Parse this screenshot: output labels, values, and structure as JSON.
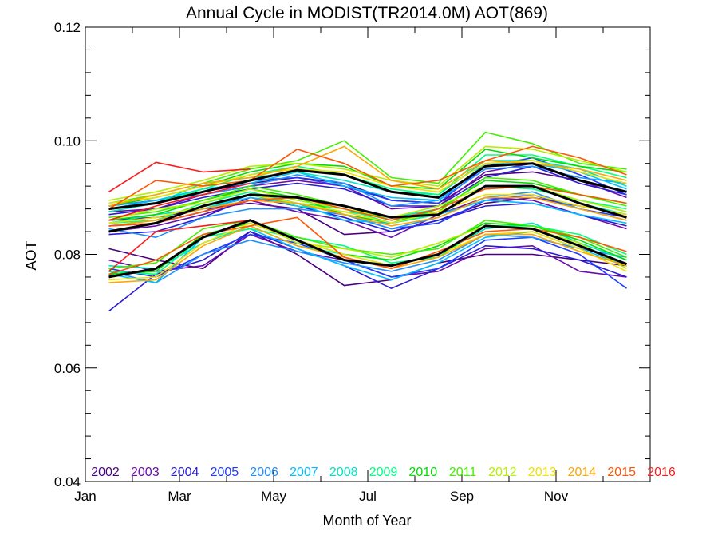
{
  "chart_data": {
    "type": "line",
    "title": "Annual Cycle in MODIST(TR2014.0M) AOT(869)",
    "xlabel": "Month of Year",
    "ylabel": "AOT",
    "x": [
      1,
      2,
      3,
      4,
      5,
      6,
      7,
      8,
      9,
      10,
      11,
      12
    ],
    "xlim": [
      0.5,
      12.5
    ],
    "ylim": [
      0.04,
      0.12
    ],
    "xticks": [
      {
        "value": 0.5,
        "label": "Jan"
      },
      {
        "value": 2.5,
        "label": "Mar"
      },
      {
        "value": 4.5,
        "label": "May"
      },
      {
        "value": 6.5,
        "label": "Jul"
      },
      {
        "value": 8.5,
        "label": "Sep"
      },
      {
        "value": 10.5,
        "label": "Nov"
      }
    ],
    "yticks": [
      {
        "value": 0.04,
        "label": "0.04"
      },
      {
        "value": 0.06,
        "label": "0.06"
      },
      {
        "value": 0.08,
        "label": "0.08"
      },
      {
        "value": 0.1,
        "label": "0.10"
      },
      {
        "value": 0.12,
        "label": "0.12"
      }
    ],
    "grid": false,
    "legend_position": "bottom",
    "series": [
      {
        "name": "2002",
        "color": "#4b0082",
        "groups": [
          [
            0.081,
            0.079,
            0.0775,
            0.084,
            0.08,
            0.0745,
            0.0755,
            0.0785,
            0.08,
            0.08,
            0.079,
            0.078
          ],
          [
            0.086,
            0.0865,
            0.088,
            0.089,
            0.088,
            0.0835,
            0.084,
            0.086,
            0.089,
            0.09,
            0.0885,
            0.087
          ],
          [
            0.0885,
            0.0895,
            0.091,
            0.0925,
            0.0935,
            0.0925,
            0.0895,
            0.089,
            0.094,
            0.0945,
            0.093,
            0.091
          ]
        ]
      },
      {
        "name": "2003",
        "color": "#6a0dad",
        "groups": [
          [
            0.079,
            0.077,
            0.078,
            0.0835,
            0.0805,
            0.079,
            0.076,
            0.077,
            0.081,
            0.0815,
            0.077,
            0.076
          ],
          [
            0.084,
            0.085,
            0.087,
            0.0895,
            0.0875,
            0.086,
            0.083,
            0.087,
            0.09,
            0.0895,
            0.087,
            0.0845
          ],
          [
            0.0875,
            0.088,
            0.0905,
            0.092,
            0.093,
            0.092,
            0.088,
            0.0885,
            0.0945,
            0.096,
            0.093,
            0.09
          ]
        ]
      },
      {
        "name": "2004",
        "color": "#2a1bd6",
        "groups": [
          [
            0.07,
            0.0765,
            0.079,
            0.084,
            0.081,
            0.078,
            0.074,
            0.0775,
            0.0815,
            0.081,
            0.079,
            0.076
          ],
          [
            0.0835,
            0.084,
            0.0865,
            0.09,
            0.0885,
            0.0865,
            0.084,
            0.086,
            0.0885,
            0.089,
            0.087,
            0.085
          ],
          [
            0.087,
            0.088,
            0.09,
            0.0915,
            0.0925,
            0.0915,
            0.0885,
            0.0885,
            0.0935,
            0.0955,
            0.0925,
            0.0905
          ]
        ]
      },
      {
        "name": "2005",
        "color": "#1e3cff",
        "groups": [
          [
            0.0775,
            0.076,
            0.08,
            0.0835,
            0.082,
            0.079,
            0.076,
            0.0775,
            0.0825,
            0.083,
            0.08,
            0.074
          ],
          [
            0.085,
            0.0855,
            0.0875,
            0.0905,
            0.089,
            0.087,
            0.0845,
            0.0855,
            0.0895,
            0.0905,
            0.088,
            0.0865
          ],
          [
            0.088,
            0.089,
            0.091,
            0.093,
            0.0935,
            0.092,
            0.0895,
            0.089,
            0.0955,
            0.097,
            0.094,
            0.0905
          ]
        ]
      },
      {
        "name": "2006",
        "color": "#1e90ff",
        "groups": [
          [
            0.077,
            0.075,
            0.08,
            0.0825,
            0.0805,
            0.0785,
            0.077,
            0.079,
            0.0835,
            0.083,
            0.081,
            0.0795
          ],
          [
            0.0845,
            0.083,
            0.0865,
            0.088,
            0.088,
            0.087,
            0.0845,
            0.0865,
            0.09,
            0.091,
            0.088,
            0.086
          ],
          [
            0.0885,
            0.0895,
            0.0905,
            0.092,
            0.094,
            0.0925,
            0.0885,
            0.0895,
            0.095,
            0.0955,
            0.0935,
            0.0925
          ]
        ]
      },
      {
        "name": "2007",
        "color": "#00bfff",
        "groups": [
          [
            0.0765,
            0.075,
            0.083,
            0.0845,
            0.081,
            0.078,
            0.0755,
            0.0785,
            0.083,
            0.084,
            0.081,
            0.078
          ],
          [
            0.085,
            0.086,
            0.088,
            0.09,
            0.089,
            0.086,
            0.0855,
            0.087,
            0.0895,
            0.089,
            0.087,
            0.0855
          ],
          [
            0.088,
            0.0895,
            0.0915,
            0.0925,
            0.0945,
            0.092,
            0.09,
            0.0895,
            0.096,
            0.096,
            0.0945,
            0.0915
          ]
        ]
      },
      {
        "name": "2008",
        "color": "#00e5c0",
        "groups": [
          [
            0.078,
            0.0775,
            0.082,
            0.085,
            0.0815,
            0.08,
            0.078,
            0.08,
            0.0845,
            0.0855,
            0.082,
            0.079
          ],
          [
            0.0855,
            0.087,
            0.088,
            0.0905,
            0.0885,
            0.0875,
            0.0865,
            0.088,
            0.0915,
            0.092,
            0.089,
            0.087
          ],
          [
            0.0875,
            0.089,
            0.0925,
            0.0935,
            0.0945,
            0.093,
            0.091,
            0.0905,
            0.0965,
            0.0965,
            0.095,
            0.092
          ]
        ]
      },
      {
        "name": "2009",
        "color": "#00ff7f",
        "groups": [
          [
            0.077,
            0.0765,
            0.083,
            0.0845,
            0.083,
            0.0815,
            0.0785,
            0.0795,
            0.085,
            0.085,
            0.0835,
            0.08
          ],
          [
            0.0855,
            0.086,
            0.089,
            0.091,
            0.089,
            0.088,
            0.0855,
            0.087,
            0.092,
            0.0915,
            0.0895,
            0.088
          ],
          [
            0.088,
            0.089,
            0.0915,
            0.094,
            0.0955,
            0.094,
            0.0915,
            0.0905,
            0.0975,
            0.0975,
            0.0955,
            0.0935
          ]
        ]
      },
      {
        "name": "2010",
        "color": "#00dd00",
        "groups": [
          [
            0.0765,
            0.077,
            0.0835,
            0.0855,
            0.0825,
            0.08,
            0.079,
            0.0815,
            0.0855,
            0.085,
            0.0825,
            0.079
          ],
          [
            0.086,
            0.087,
            0.0895,
            0.0915,
            0.09,
            0.087,
            0.0855,
            0.088,
            0.093,
            0.0925,
            0.0905,
            0.089
          ],
          [
            0.0885,
            0.09,
            0.092,
            0.0945,
            0.096,
            0.0955,
            0.092,
            0.0915,
            0.0985,
            0.097,
            0.0955,
            0.0945
          ]
        ]
      },
      {
        "name": "2011",
        "color": "#44ee00",
        "groups": [
          [
            0.0775,
            0.0785,
            0.0845,
            0.086,
            0.083,
            0.081,
            0.08,
            0.081,
            0.086,
            0.085,
            0.083,
            0.0795
          ],
          [
            0.0865,
            0.0875,
            0.0895,
            0.092,
            0.0905,
            0.0885,
            0.086,
            0.0875,
            0.0935,
            0.093,
            0.0905,
            0.0885
          ],
          [
            0.089,
            0.0905,
            0.0925,
            0.095,
            0.0965,
            0.1,
            0.0935,
            0.0925,
            0.1015,
            0.0995,
            0.096,
            0.095
          ]
        ]
      },
      {
        "name": "2012",
        "color": "#b5ee00",
        "groups": [
          [
            0.076,
            0.0775,
            0.083,
            0.086,
            0.082,
            0.081,
            0.0795,
            0.082,
            0.085,
            0.0845,
            0.082,
            0.0775
          ],
          [
            0.086,
            0.088,
            0.089,
            0.0915,
            0.0895,
            0.088,
            0.0865,
            0.0885,
            0.092,
            0.092,
            0.0895,
            0.0875
          ],
          [
            0.0895,
            0.091,
            0.093,
            0.0955,
            0.096,
            0.095,
            0.093,
            0.092,
            0.099,
            0.0985,
            0.0965,
            0.0945
          ]
        ]
      },
      {
        "name": "2013",
        "color": "#f0e000",
        "groups": [
          [
            0.0755,
            0.076,
            0.082,
            0.0855,
            0.0825,
            0.08,
            0.078,
            0.08,
            0.0835,
            0.084,
            0.081,
            0.077
          ],
          [
            0.0855,
            0.0865,
            0.0885,
            0.0905,
            0.089,
            0.0875,
            0.0855,
            0.0875,
            0.0905,
            0.0905,
            0.0885,
            0.087
          ],
          [
            0.089,
            0.09,
            0.092,
            0.094,
            0.095,
            0.0945,
            0.092,
            0.091,
            0.096,
            0.0965,
            0.0945,
            0.0925
          ]
        ]
      },
      {
        "name": "2014",
        "color": "#ffa500",
        "groups": [
          [
            0.075,
            0.0755,
            0.0815,
            0.085,
            0.0815,
            0.0795,
            0.0775,
            0.0795,
            0.0835,
            0.0835,
            0.0805,
            0.078
          ],
          [
            0.085,
            0.086,
            0.088,
            0.0895,
            0.089,
            0.087,
            0.085,
            0.0865,
            0.09,
            0.09,
            0.088,
            0.086
          ],
          [
            0.0885,
            0.0905,
            0.0925,
            0.0935,
            0.0955,
            0.099,
            0.093,
            0.0915,
            0.0965,
            0.096,
            0.095,
            0.093
          ]
        ]
      },
      {
        "name": "2015",
        "color": "#ff5500",
        "groups": [
          [
            0.0765,
            0.079,
            0.0835,
            0.085,
            0.0865,
            0.0795,
            0.0775,
            0.0805,
            0.084,
            0.0845,
            0.083,
            0.0805
          ],
          [
            0.085,
            0.0855,
            0.0875,
            0.0895,
            0.09,
            0.088,
            0.086,
            0.088,
            0.0915,
            0.092,
            0.0905,
            0.089
          ],
          [
            0.088,
            0.093,
            0.092,
            0.093,
            0.0985,
            0.096,
            0.092,
            0.093,
            0.0965,
            0.099,
            0.097,
            0.094
          ]
        ]
      },
      {
        "name": "2016",
        "color": "#ff1a1a",
        "groups": [
          [
            0.077,
            0.084,
            0.085,
            0.086
          ],
          [
            0.086,
            0.0885,
            0.0905,
            0.0925
          ],
          [
            0.091,
            0.0962,
            0.0945,
            0.095
          ]
        ]
      }
    ],
    "mean_series": {
      "color": "#000000",
      "groups": [
        [
          0.076,
          0.0775,
          0.083,
          0.086,
          0.0825,
          0.079,
          0.078,
          0.08,
          0.085,
          0.0845,
          0.0815,
          0.0783
        ],
        [
          0.084,
          0.0855,
          0.0885,
          0.0905,
          0.09,
          0.0885,
          0.0865,
          0.087,
          0.092,
          0.092,
          0.089,
          0.0865
        ],
        [
          0.088,
          0.089,
          0.091,
          0.093,
          0.0948,
          0.094,
          0.091,
          0.09,
          0.0955,
          0.096,
          0.093,
          0.091
        ]
      ]
    }
  }
}
